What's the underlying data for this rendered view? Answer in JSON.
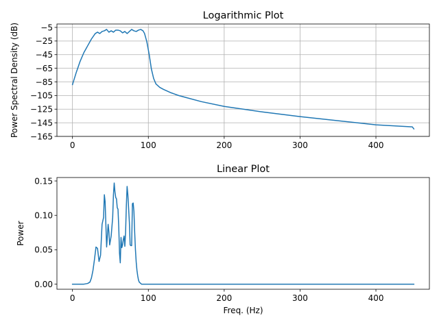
{
  "chart_data": [
    {
      "type": "line",
      "title": "Logarithmic Plot",
      "xlabel": "",
      "ylabel": "Power Spectral Density (dB)",
      "xlim": [
        -20.5,
        470.5
      ],
      "ylim": [
        -165,
        0
      ],
      "grid": true,
      "x_ticks": [
        0,
        100,
        200,
        300,
        400
      ],
      "x_tick_labels": [
        "0",
        "100",
        "200",
        "300",
        "400"
      ],
      "y_ticks": [
        -5,
        -25,
        -45,
        -65,
        -85,
        -105,
        -125,
        -145,
        -165
      ],
      "y_tick_labels": [
        "−5",
        "−25",
        "−45",
        "−65",
        "−85",
        "−105",
        "−125",
        "−145",
        "−165"
      ],
      "color": "#1f77b4",
      "series": [
        {
          "x": [
            0,
            5,
            10,
            15,
            20,
            25,
            30,
            33,
            36,
            39,
            42,
            45,
            48,
            51,
            54,
            57,
            60,
            63,
            66,
            69,
            72,
            75,
            78,
            81,
            84,
            87,
            90,
            93,
            95,
            98,
            101,
            104,
            107,
            110,
            115,
            120,
            130,
            140,
            150,
            170,
            200,
            250,
            300,
            350,
            400,
            448,
            450
          ],
          "y": [
            -89,
            -71,
            -55,
            -42,
            -32,
            -22,
            -14,
            -12,
            -14,
            -11,
            -10,
            -8,
            -12,
            -10,
            -12,
            -9,
            -9,
            -10,
            -13,
            -11,
            -14,
            -11,
            -8,
            -10,
            -11,
            -9,
            -8,
            -10,
            -14,
            -26,
            -44,
            -66,
            -80,
            -88,
            -93,
            -96,
            -101,
            -105,
            -108,
            -114,
            -121,
            -129,
            -136,
            -142,
            -148,
            -151,
            -154
          ]
        }
      ]
    },
    {
      "type": "line",
      "title": "Linear Plot",
      "xlabel": "Freq. (Hz)",
      "ylabel": "Power",
      "xlim": [
        -20.5,
        470.5
      ],
      "ylim": [
        -0.0074,
        0.155
      ],
      "grid": false,
      "x_ticks": [
        0,
        100,
        200,
        300,
        400
      ],
      "x_tick_labels": [
        "0",
        "100",
        "200",
        "300",
        "400"
      ],
      "y_ticks": [
        0,
        0.05,
        0.1,
        0.15
      ],
      "y_tick_labels": [
        "0.00",
        "0.05",
        "0.10",
        "0.15"
      ],
      "color": "#1f77b4",
      "series": [
        {
          "x": [
            0,
            15,
            20,
            23,
            25,
            27,
            29,
            31,
            33,
            35,
            37,
            39,
            41,
            42,
            43,
            45,
            46,
            47,
            48,
            49,
            51,
            53,
            54,
            55,
            56,
            57,
            58,
            59,
            60,
            61,
            62,
            63,
            64,
            65,
            66,
            67,
            68,
            69,
            70,
            71,
            72,
            73,
            74,
            75,
            76,
            77,
            78,
            79,
            80,
            81,
            82,
            83,
            84,
            85,
            86,
            87,
            88,
            89,
            90,
            91,
            92,
            93,
            94,
            96,
            100,
            105,
            450
          ],
          "y": [
            0,
            0,
            0.001,
            0.003,
            0.009,
            0.02,
            0.036,
            0.054,
            0.052,
            0.033,
            0.042,
            0.087,
            0.097,
            0.13,
            0.12,
            0.054,
            0.07,
            0.087,
            0.076,
            0.057,
            0.07,
            0.097,
            0.13,
            0.147,
            0.134,
            0.126,
            0.124,
            0.111,
            0.109,
            0.083,
            0.045,
            0.031,
            0.068,
            0.053,
            0.057,
            0.065,
            0.07,
            0.055,
            0.075,
            0.114,
            0.142,
            0.13,
            0.11,
            0.09,
            0.057,
            0.056,
            0.056,
            0.117,
            0.118,
            0.106,
            0.075,
            0.05,
            0.032,
            0.02,
            0.012,
            0.006,
            0.003,
            0.002,
            0.001,
            0,
            0,
            0,
            0,
            0,
            0,
            0,
            0
          ]
        }
      ]
    }
  ]
}
